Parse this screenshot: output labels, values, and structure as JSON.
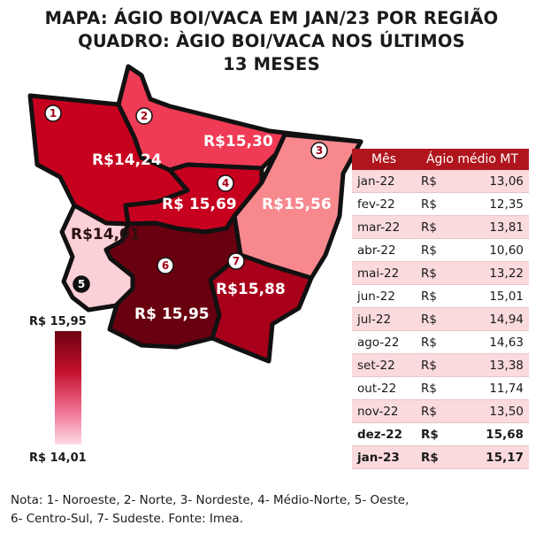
{
  "title": {
    "line1": "MAPA: ÁGIO BOI/VACA EM JAN/23 POR REGIÃO",
    "line2": "QUADRO: ÀGIO BOI/VACA NOS ÚLTIMOS",
    "line3": "13 MESES"
  },
  "map": {
    "regions": [
      {
        "number": "1",
        "name": "Noroeste",
        "value_label": "R$14,24",
        "color": "#c6001e"
      },
      {
        "number": "2",
        "name": "Norte",
        "value_label": "R$15,30",
        "color": "#ef3b55"
      },
      {
        "number": "3",
        "name": "Nordeste",
        "value_label": "R$15,56",
        "color": "#f6888e"
      },
      {
        "number": "4",
        "name": "Médio-Norte",
        "value_label": "R$ 15,69",
        "color": "#c6001e"
      },
      {
        "number": "5",
        "name": "Oeste",
        "value_label": "R$14,01",
        "color": "#fbd0d6"
      },
      {
        "number": "6",
        "name": "Centro-Sul",
        "value_label": "R$ 15,95",
        "color": "#690010"
      },
      {
        "number": "7",
        "name": "Sudeste",
        "value_label": "R$15,88",
        "color": "#a8001a"
      }
    ],
    "legend": {
      "max_label": "R$ 15,95",
      "min_label": "R$ 14,01"
    }
  },
  "table": {
    "headers": [
      "Mês",
      "Ágio médio MT"
    ],
    "rows": [
      {
        "month": "jan-22",
        "currency": "R$",
        "value": "13,06",
        "bold": false
      },
      {
        "month": "fev-22",
        "currency": "R$",
        "value": "12,35",
        "bold": false
      },
      {
        "month": "mar-22",
        "currency": "R$",
        "value": "13,81",
        "bold": false
      },
      {
        "month": "abr-22",
        "currency": "R$",
        "value": "10,60",
        "bold": false
      },
      {
        "month": "mai-22",
        "currency": "R$",
        "value": "13,22",
        "bold": false
      },
      {
        "month": "jun-22",
        "currency": "R$",
        "value": "15,01",
        "bold": false
      },
      {
        "month": "jul-22",
        "currency": "R$",
        "value": "14,94",
        "bold": false
      },
      {
        "month": "ago-22",
        "currency": "R$",
        "value": "14,63",
        "bold": false
      },
      {
        "month": "set-22",
        "currency": "R$",
        "value": "13,38",
        "bold": false
      },
      {
        "month": "out-22",
        "currency": "R$",
        "value": "11,74",
        "bold": false
      },
      {
        "month": "nov-22",
        "currency": "R$",
        "value": "13,50",
        "bold": false
      },
      {
        "month": "dez-22",
        "currency": "R$",
        "value": "15,68",
        "bold": true
      },
      {
        "month": "jan-23",
        "currency": "R$",
        "value": "15,17",
        "bold": true
      }
    ]
  },
  "note": {
    "line1": "Nota: 1- Noroeste, 2- Norte, 3- Nordeste, 4- Médio-Norte, 5- Oeste,",
    "line2": "6- Centro-Sul, 7- Sudeste. Fonte: Imea."
  }
}
